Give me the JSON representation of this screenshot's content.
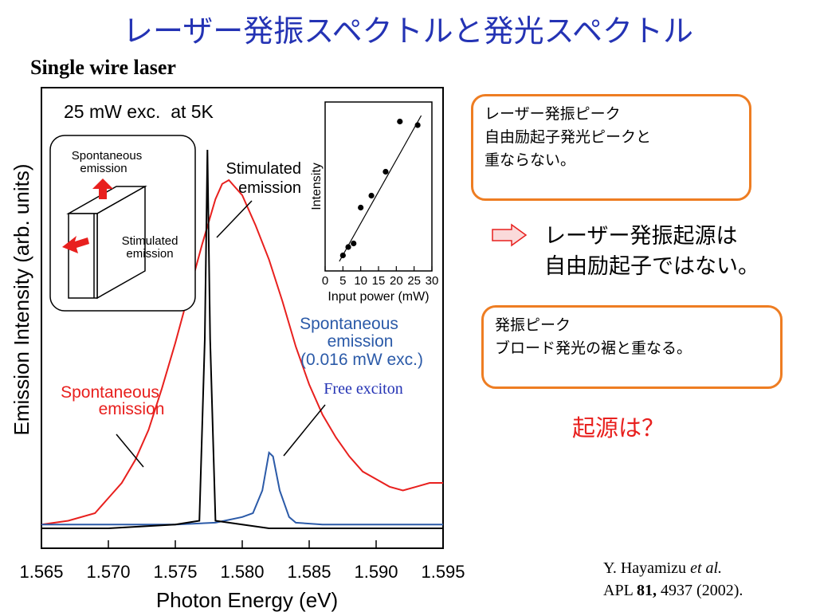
{
  "slide": {
    "title": "レーザー発振スペクトルと発光スペクトル",
    "subtitle": "Single wire laser"
  },
  "main_chart": {
    "condition": "25 mW exc.  at 5K",
    "xlabel": "Photon Energy (eV)",
    "ylabel": "Emission Intensity (arb. units)",
    "xticks": [
      "1.565",
      "1.570",
      "1.575",
      "1.580",
      "1.585",
      "1.590",
      "1.595"
    ],
    "labels": {
      "stimulated": [
        "Stimulated",
        "emission"
      ],
      "spont_red": [
        "Spontaneous",
        "emission"
      ],
      "spont_blue": [
        "Spontaneous",
        "emission",
        "(0.016 mW exc.)"
      ],
      "free_exciton": "Free exciton"
    },
    "schematic": {
      "top": [
        "Spontaneous",
        "emission"
      ],
      "side": [
        "Stimulated",
        "emission"
      ]
    }
  },
  "inset_chart": {
    "ylabel": "Intensity",
    "xlabel": "Input power (mW)",
    "xticks": [
      "0",
      "5",
      "10",
      "15",
      "20",
      "25",
      "30"
    ]
  },
  "chart_data": [
    {
      "type": "line",
      "xlabel": "Photon Energy (eV)",
      "ylabel": "Emission Intensity (arb. units)",
      "xlim": [
        1.565,
        1.595
      ],
      "ylim": [
        0,
        1.0
      ],
      "series": [
        {
          "name": "Spontaneous emission",
          "color": "#e8201e",
          "x": [
            1.565,
            1.567,
            1.569,
            1.57,
            1.571,
            1.572,
            1.573,
            1.574,
            1.575,
            1.576,
            1.577,
            1.578,
            1.5785,
            1.579,
            1.5795,
            1.58,
            1.581,
            1.582,
            1.583,
            1.584,
            1.585,
            1.586,
            1.587,
            1.588,
            1.589,
            1.59,
            1.591,
            1.592,
            1.593,
            1.594,
            1.595
          ],
          "y": [
            0.01,
            0.02,
            0.04,
            0.08,
            0.12,
            0.18,
            0.26,
            0.37,
            0.49,
            0.62,
            0.75,
            0.87,
            0.91,
            0.92,
            0.9,
            0.88,
            0.8,
            0.71,
            0.6,
            0.48,
            0.38,
            0.3,
            0.24,
            0.19,
            0.15,
            0.13,
            0.11,
            0.1,
            0.11,
            0.12,
            0.12
          ]
        },
        {
          "name": "Stimulated emission",
          "color": "#000000",
          "x": [
            1.565,
            1.57,
            1.575,
            1.5768,
            1.5772,
            1.5774,
            1.5776,
            1.578,
            1.58,
            1.582,
            1.585,
            1.59,
            1.595
          ],
          "y": [
            0.0,
            0.0,
            0.01,
            0.02,
            0.5,
            1.0,
            0.5,
            0.02,
            0.01,
            0.0,
            0.0,
            0.0,
            0.0
          ]
        },
        {
          "name": "Spontaneous emission (0.016 mW exc.)",
          "color": "#2b5aa8",
          "x": [
            1.565,
            1.57,
            1.575,
            1.578,
            1.58,
            1.5808,
            1.5815,
            1.582,
            1.5823,
            1.5828,
            1.5835,
            1.584,
            1.586,
            1.59,
            1.595
          ],
          "y": [
            0.01,
            0.01,
            0.01,
            0.015,
            0.03,
            0.04,
            0.1,
            0.2,
            0.19,
            0.1,
            0.03,
            0.015,
            0.01,
            0.01,
            0.01
          ]
        }
      ]
    },
    {
      "type": "scatter",
      "xlabel": "Input power (mW)",
      "ylabel": "Intensity",
      "xlim": [
        0,
        30
      ],
      "points": {
        "x": [
          5,
          6.5,
          8,
          10,
          13,
          17,
          21,
          26
        ],
        "y": [
          0.05,
          0.12,
          0.15,
          0.45,
          0.55,
          0.75,
          1.17,
          1.14
        ]
      },
      "fit_line": {
        "x": [
          4,
          27
        ],
        "y": [
          0.0,
          1.22
        ]
      }
    }
  ],
  "right_panel": {
    "box1": [
      "レーザー発振ピーク",
      "自由励起子発光ピークと",
      "重ならない。"
    ],
    "conclusion": [
      "レーザー発振起源は",
      "自由励起子ではない。"
    ],
    "box2": [
      "発振ピーク",
      "ブロード発光の裾と重なる。"
    ],
    "question": "起源は？"
  },
  "citation": {
    "line1_prefix": "Y. Hayamizu ",
    "line1_italic": "et al.",
    "line2_journal": "APL ",
    "line2_volume": "81,",
    "line2_rest": " 4937 (2002)."
  },
  "colors": {
    "title": "#2433b4",
    "box_border": "#ee7d22",
    "question": "#e8201e",
    "red_series": "#e8201e",
    "blue_series": "#2b5aa8",
    "arrow": "#e8201e"
  }
}
